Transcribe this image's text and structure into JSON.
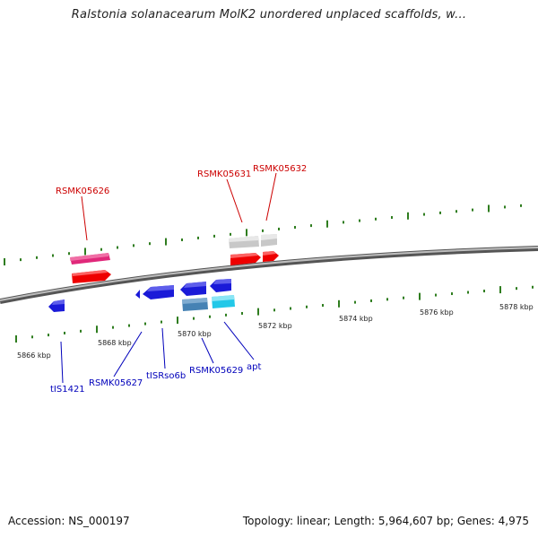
{
  "title": "Ralstonia solanacearum MolK2 unordered unplaced scaffolds, w...",
  "footer": {
    "accession": "Accession: NS_000197",
    "topology": "Topology: linear; Length: 5,964,607 bp; Genes: 4,975"
  },
  "scale_labels": [
    "5866 kbp",
    "5868 kbp",
    "5870 kbp",
    "5872 kbp",
    "5874 kbp",
    "5876 kbp",
    "5878 kbp"
  ],
  "genes": {
    "top": [
      "RSMK05626",
      "RSMK05631",
      "RSMK05632"
    ],
    "bottom": [
      "tIS1421",
      "RSMK05627",
      "tISRso6b",
      "RSMK05629",
      "apt"
    ]
  },
  "colors": {
    "axis": "#7f7f7f",
    "ticks": "#2f7d1f",
    "top_label": "#cc0000",
    "bottom_label": "#0000bb",
    "red_feature": "#ee0000",
    "pink_feature": "#e0287a",
    "grey_feature": "#c8c8c8",
    "blue_feature": "#1a1ad8",
    "steel_feature": "#4682b4",
    "cyan_feature": "#22c8e8"
  }
}
